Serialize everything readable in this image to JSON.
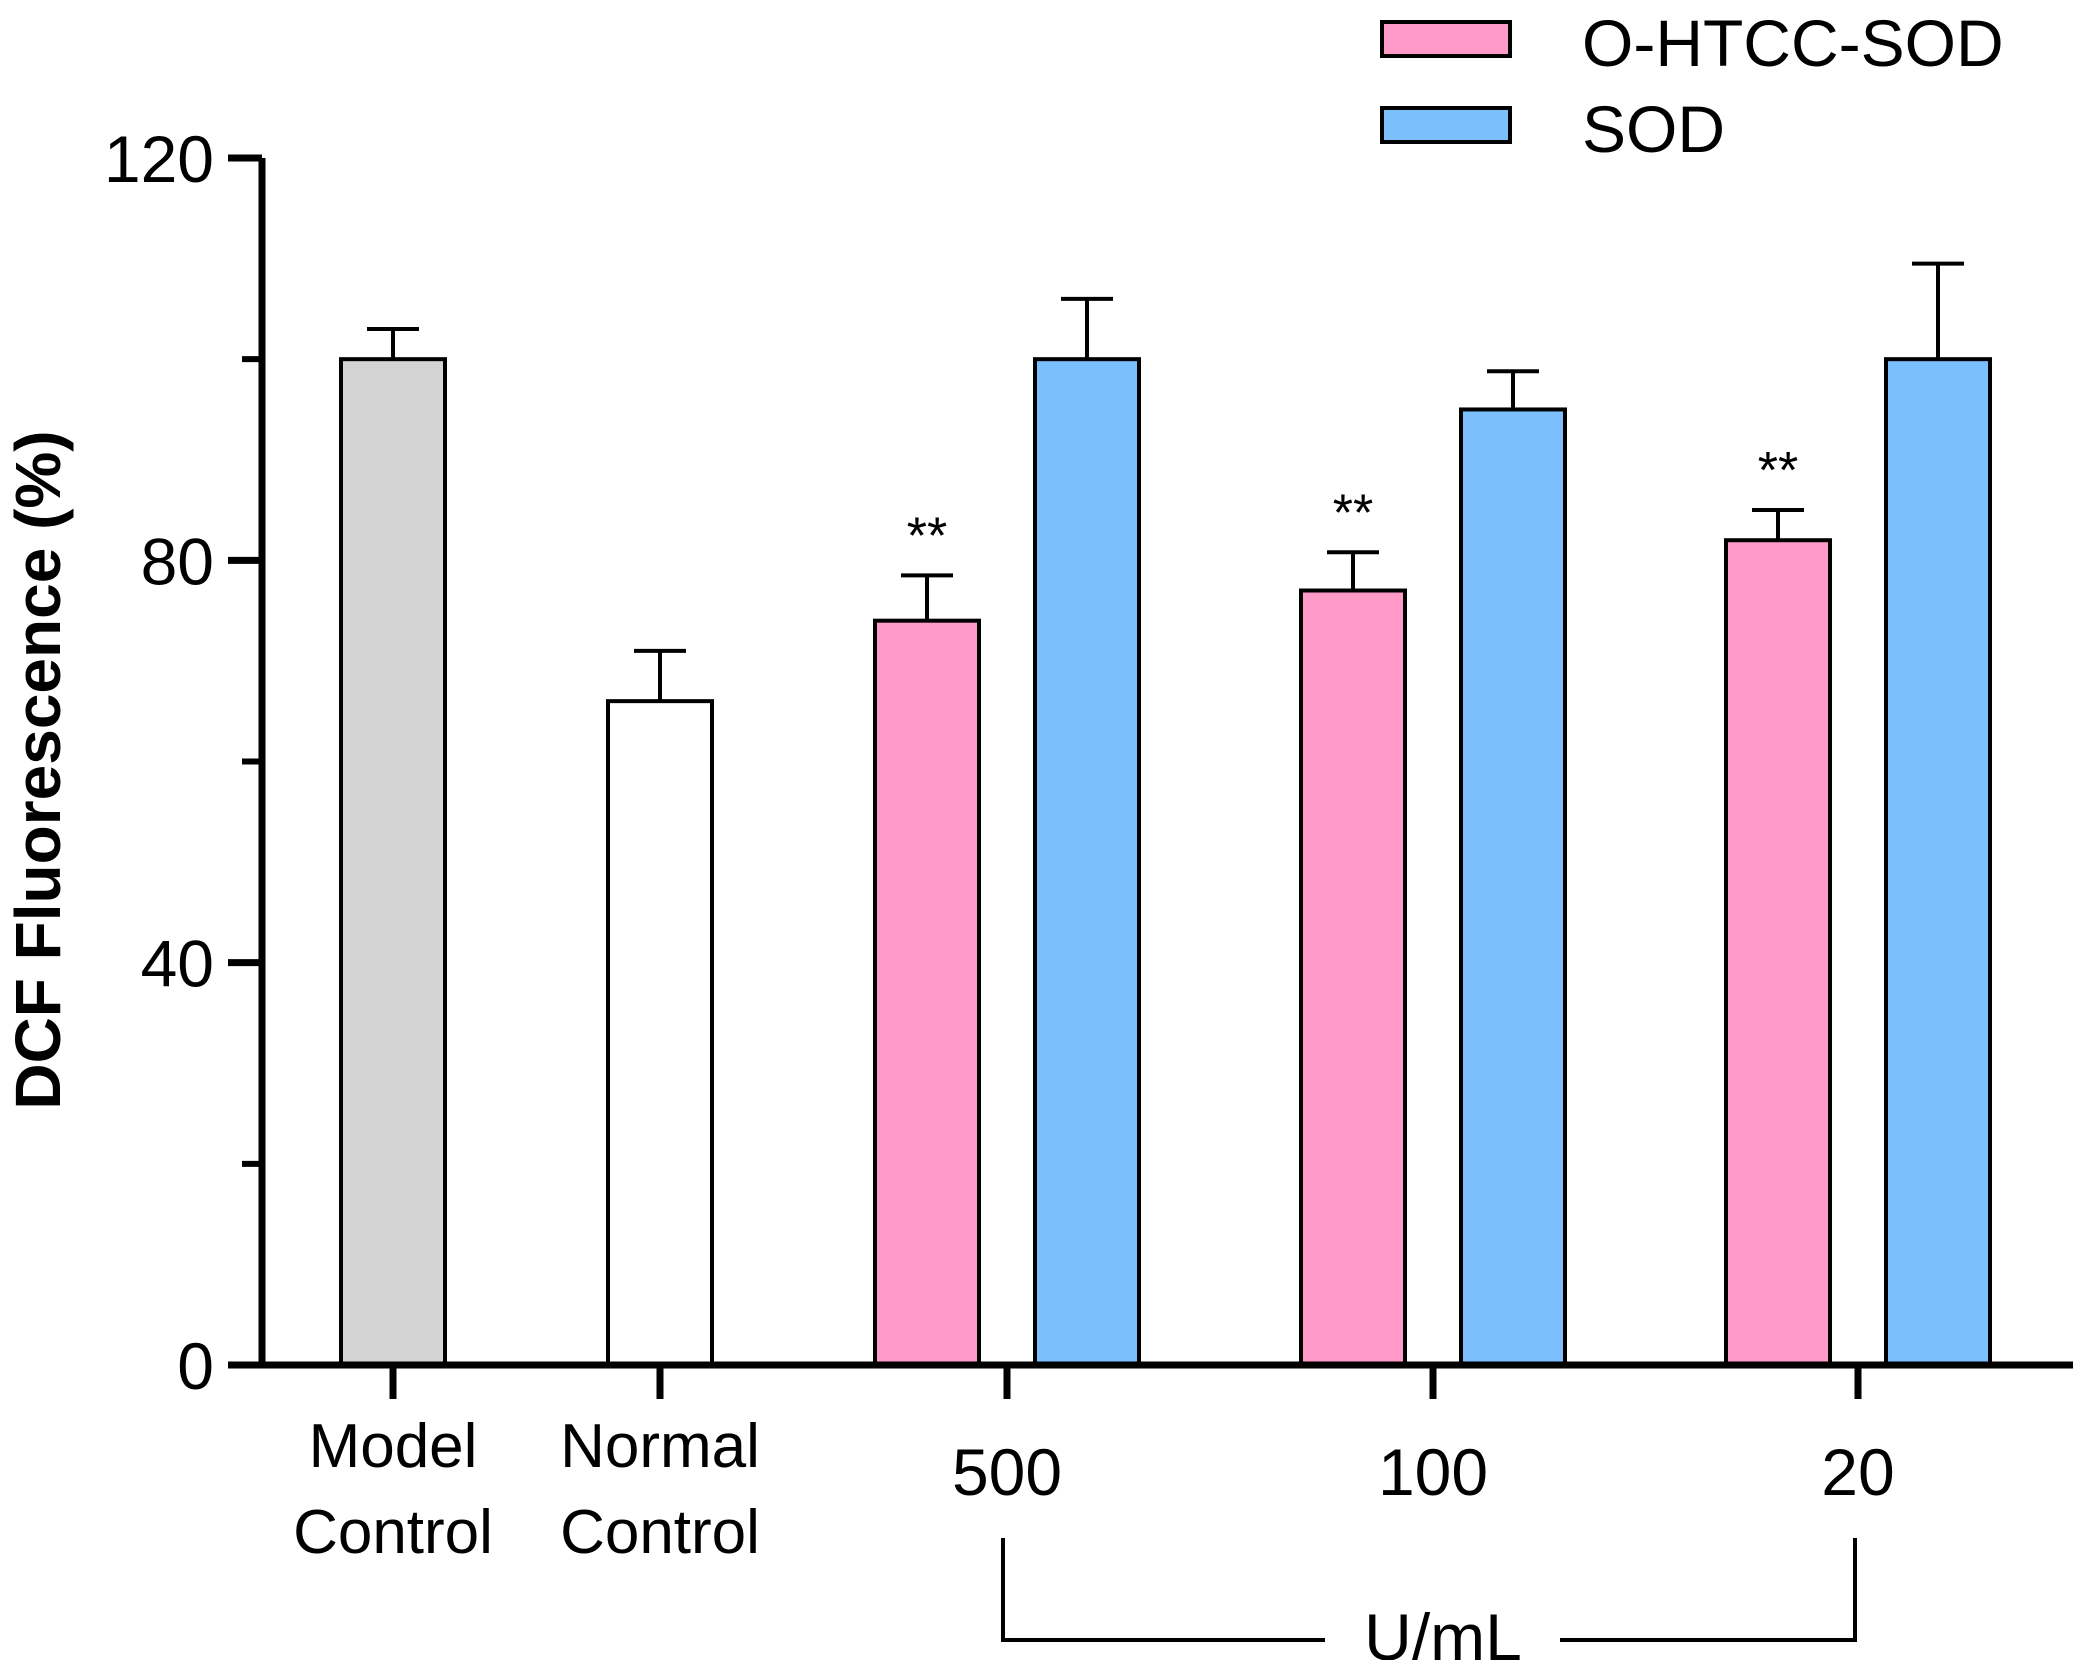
{
  "chart_data": {
    "type": "bar",
    "ylabel": "DCF Fluorescence (%)",
    "ylim": [
      0,
      120
    ],
    "yticks": [
      0,
      40,
      80,
      120
    ],
    "y_minor_ticks": [
      20,
      60,
      100
    ],
    "legend": {
      "placement": "top-right",
      "entries": [
        {
          "label": "O-HTCC-SOD",
          "color": "#ff99c8"
        },
        {
          "label": "SOD",
          "color": "#7bbfff"
        }
      ]
    },
    "controls": [
      {
        "label_lines": [
          "Model",
          "Control"
        ],
        "value": 100,
        "error": 3,
        "color": "#d4d4d4"
      },
      {
        "label_lines": [
          "Normal",
          "Control"
        ],
        "value": 66,
        "error": 5,
        "color": "#ffffff"
      }
    ],
    "categories": [
      "500",
      "100",
      "20"
    ],
    "series": [
      {
        "name": "O-HTCC-SOD",
        "color": "#ff99c8",
        "values": [
          74,
          77,
          82
        ],
        "errors": [
          4.5,
          3.8,
          3
        ],
        "significance": [
          "**",
          "**",
          "**"
        ]
      },
      {
        "name": "SOD",
        "color": "#7bbfff",
        "values": [
          100,
          95,
          100
        ],
        "errors": [
          6,
          3.8,
          9.5
        ],
        "significance": [
          "",
          "",
          ""
        ]
      }
    ],
    "group_label": "U/mL"
  }
}
